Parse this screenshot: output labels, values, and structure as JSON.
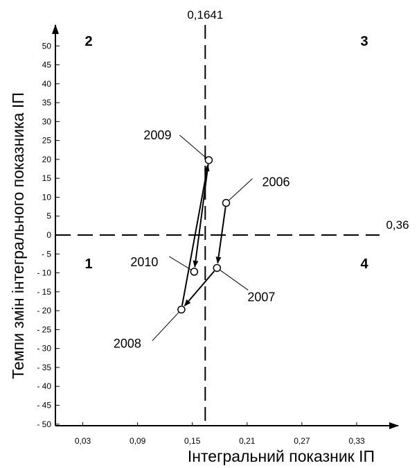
{
  "chart_data": {
    "type": "scatter",
    "title": "",
    "xlabel": "Інтегральний показник ІП",
    "ylabel": "Темпи змін інтегрального показника ІП",
    "xlim": [
      0,
      0.36
    ],
    "ylim": [
      -50,
      50
    ],
    "x_ticks": [
      0.03,
      0.09,
      0.15,
      0.21,
      0.27,
      0.33
    ],
    "x_tick_labels": [
      "0,03",
      "0,09",
      "0,15",
      "0,21",
      "0,27",
      "0,33"
    ],
    "y_ticks": [
      50,
      45,
      40,
      35,
      30,
      25,
      20,
      15,
      10,
      5,
      0,
      -5,
      -10,
      -15,
      -20,
      -25,
      -30,
      -35,
      -40,
      -45,
      -50
    ],
    "y_tick_labels": [
      "50",
      "45",
      "40",
      "35",
      "30",
      "25",
      "20",
      "15",
      "10",
      "5",
      "0",
      "- 5",
      "- 10",
      "- 15",
      "- 20",
      "- 25",
      "- 30",
      "- 35",
      "- 40",
      "- 45",
      "- 50"
    ],
    "grid": false,
    "reference_lines": {
      "vertical": {
        "x": 0.1641,
        "label": "0,1641"
      },
      "horizontal": {
        "y": 0,
        "label": "0,36"
      }
    },
    "quadrant_labels": [
      "1",
      "2",
      "3",
      "4"
    ],
    "points": [
      {
        "label": "2006",
        "x": 0.187,
        "y": 8.5
      },
      {
        "label": "2007",
        "x": 0.177,
        "y": -8.7
      },
      {
        "label": "2008",
        "x": 0.138,
        "y": -19.7
      },
      {
        "label": "2009",
        "x": 0.168,
        "y": 19.8
      },
      {
        "label": "2010",
        "x": 0.152,
        "y": -9.7
      }
    ],
    "arrows": [
      [
        "2006",
        "2007"
      ],
      [
        "2007",
        "2008"
      ],
      [
        "2008",
        "2009"
      ],
      [
        "2009",
        "2010"
      ]
    ]
  }
}
